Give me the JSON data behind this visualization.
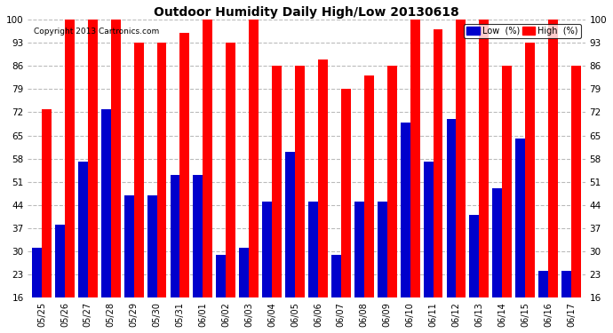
{
  "title": "Outdoor Humidity Daily High/Low 20130618",
  "copyright": "Copyright 2013 Cartronics.com",
  "labels": [
    "05/25",
    "05/26",
    "05/27",
    "05/28",
    "05/29",
    "05/30",
    "05/31",
    "06/01",
    "06/02",
    "06/03",
    "06/04",
    "06/05",
    "06/06",
    "06/07",
    "06/08",
    "06/09",
    "06/10",
    "06/11",
    "06/12",
    "06/13",
    "06/14",
    "06/15",
    "06/16",
    "06/17"
  ],
  "high": [
    73,
    100,
    100,
    100,
    93,
    93,
    96,
    100,
    93,
    100,
    86,
    86,
    88,
    79,
    83,
    86,
    100,
    97,
    100,
    100,
    86,
    93,
    100,
    86
  ],
  "low": [
    31,
    38,
    57,
    73,
    47,
    47,
    53,
    53,
    29,
    31,
    45,
    60,
    45,
    29,
    45,
    45,
    69,
    57,
    70,
    41,
    49,
    64,
    24,
    24
  ],
  "ylim": [
    16,
    100
  ],
  "yticks": [
    16,
    23,
    30,
    37,
    44,
    51,
    58,
    65,
    72,
    79,
    86,
    93,
    100
  ],
  "high_color": "#ff0000",
  "low_color": "#0000cc",
  "background_color": "#ffffff",
  "grid_color": "#aaaaaa",
  "legend_low_label": "Low  (%)",
  "legend_high_label": "High  (%)"
}
